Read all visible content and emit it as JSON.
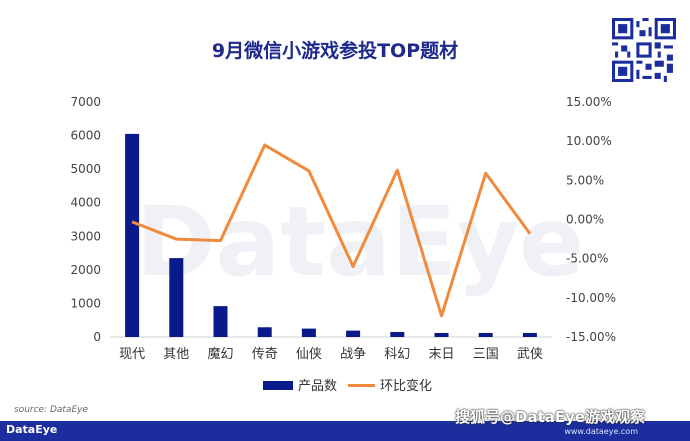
{
  "chart_data": {
    "type": "bar",
    "title": "9月微信小游戏参投TOP题材",
    "categories": [
      "现代",
      "其他",
      "魔幻",
      "传奇",
      "仙侠",
      "战争",
      "科幻",
      "末日",
      "三国",
      "武侠"
    ],
    "series": [
      {
        "name": "产品数",
        "type": "bar",
        "axis": "left",
        "color": "#0b1a8a",
        "values": [
          6050,
          2350,
          920,
          290,
          250,
          190,
          150,
          120,
          120,
          120
        ]
      },
      {
        "name": "环比变化",
        "type": "line",
        "axis": "right",
        "color": "#f08a3c",
        "values": [
          -0.3,
          -2.5,
          -2.7,
          9.5,
          6.2,
          -6.0,
          6.3,
          -12.3,
          5.9,
          -1.8
        ]
      }
    ],
    "y_left": {
      "min": 0,
      "max": 7000,
      "step": 1000,
      "ticks": [
        "0",
        "1000",
        "2000",
        "3000",
        "4000",
        "5000",
        "6000",
        "7000"
      ]
    },
    "y_right": {
      "min": -15,
      "max": 15,
      "step": 5,
      "ticks": [
        "-15.00%",
        "-10.00%",
        "-5.00%",
        "0.00%",
        "5.00%",
        "10.00%",
        "15.00%"
      ]
    },
    "legend": {
      "position": "bottom"
    },
    "grid": false
  },
  "source": "source: DataEye",
  "footer": {
    "logo": "DataEye",
    "overlay": "搜狐号@DataEye游戏观察",
    "url": "www.dataeye.com"
  },
  "watermark": "DataEye",
  "icons": {
    "qr": "qr-code-icon"
  }
}
